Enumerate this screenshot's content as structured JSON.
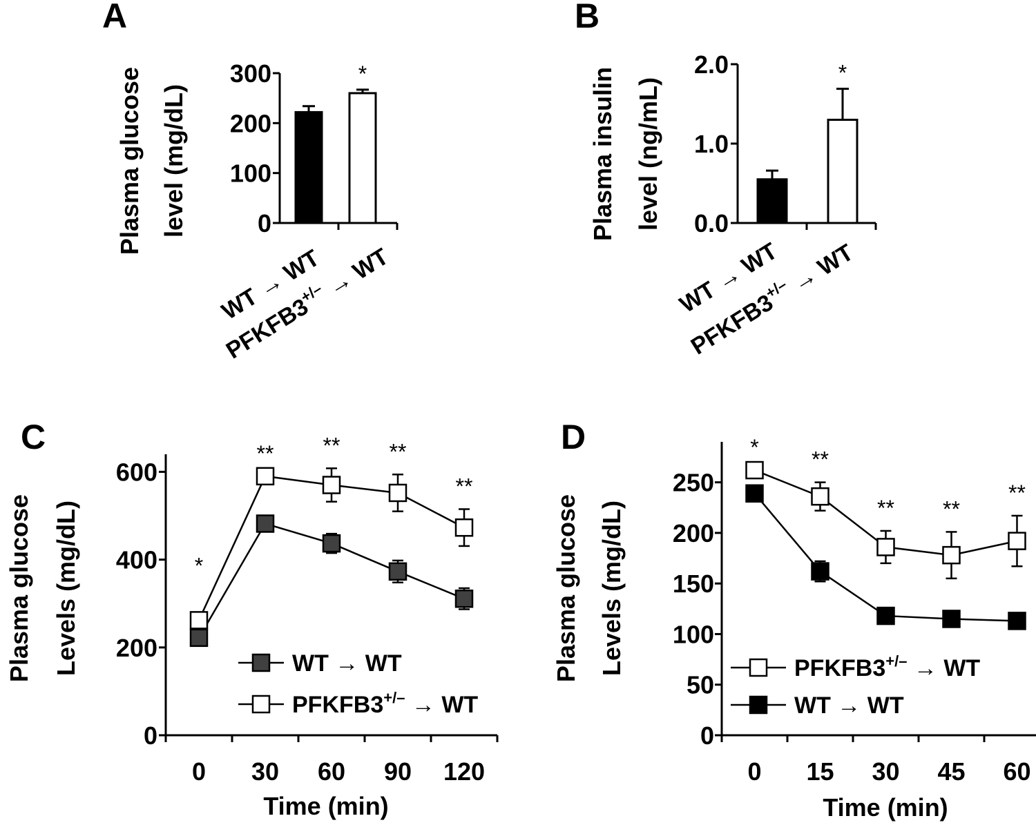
{
  "chart_data": [
    {
      "panel": "A",
      "type": "bar",
      "ylabel": "Plasma glucose level (mg/dL)",
      "ylabel_lines": [
        "Plasma glucose",
        "level (mg/dL)"
      ],
      "ylim": [
        0,
        300
      ],
      "yticks": [
        0,
        100,
        200,
        300
      ],
      "ytick_labels": [
        "0",
        "100",
        "200",
        "300"
      ],
      "categories": [
        "WT → WT",
        "PFKFB3+/– → WT"
      ],
      "category_labels": [
        {
          "main": "WT → WT",
          "base": "",
          "sup": "",
          "tail": ""
        },
        {
          "main": "",
          "base": "PFKFB3",
          "sup": "+/–",
          "tail": " → WT"
        }
      ],
      "values": [
        222,
        260
      ],
      "errors": [
        12,
        7
      ],
      "fills": [
        "#000000",
        "#ffffff"
      ],
      "significance": [
        "",
        "*"
      ]
    },
    {
      "panel": "B",
      "type": "bar",
      "ylabel": "Plasma insulin level (ng/mL)",
      "ylabel_lines": [
        "Plasma insulin",
        "level (ng/mL)"
      ],
      "ylim": [
        0,
        2.0
      ],
      "yticks": [
        0,
        1.0,
        2.0
      ],
      "ytick_labels": [
        "0.0",
        "1.0",
        "2.0"
      ],
      "categories": [
        "WT → WT",
        "PFKFB3+/– → WT"
      ],
      "category_labels": [
        {
          "main": "WT → WT",
          "base": "",
          "sup": "",
          "tail": ""
        },
        {
          "main": "",
          "base": "PFKFB3",
          "sup": "+/–",
          "tail": " → WT"
        }
      ],
      "values": [
        0.55,
        1.3
      ],
      "errors": [
        0.11,
        0.39
      ],
      "fills": [
        "#000000",
        "#ffffff"
      ],
      "significance": [
        "",
        "*"
      ]
    },
    {
      "panel": "C",
      "type": "line",
      "xlabel": "Time (min)",
      "ylabel": "Plasma glucose Levels (mg/dL)",
      "ylabel_lines": [
        "Plasma glucose",
        "Levels (mg/dL)"
      ],
      "x": [
        0,
        30,
        60,
        90,
        120
      ],
      "xtick_labels": [
        "0",
        "30",
        "60",
        "90",
        "120"
      ],
      "xlim": [
        -15,
        135
      ],
      "ylim": [
        0,
        640
      ],
      "yticks": [
        0,
        200,
        400,
        600
      ],
      "ytick_labels": [
        "0",
        "200",
        "400",
        "600"
      ],
      "series": [
        {
          "name": "WT → WT",
          "legend_base": "WT → WT",
          "legend_sup": "",
          "legend_tail": "",
          "marker_fill": "#404040",
          "values": [
            222,
            482,
            437,
            373,
            311
          ],
          "errors": [
            0,
            12,
            22,
            25,
            24
          ]
        },
        {
          "name": "PFKFB3+/– → WT",
          "legend_base": "PFKFB3",
          "legend_sup": "+/–",
          "legend_tail": " → WT",
          "marker_fill": "#ffffff",
          "values": [
            262,
            590,
            570,
            552,
            473
          ],
          "errors": [
            0,
            0,
            38,
            42,
            42
          ]
        }
      ],
      "significance": [
        "*",
        "**",
        "**",
        "**",
        "**"
      ],
      "legend_position": "lower-right"
    },
    {
      "panel": "D",
      "type": "line",
      "xlabel": "Time (min)",
      "ylabel": "Plasma glucose Levels (mg/dL)",
      "ylabel_lines": [
        "Plasma glucose",
        "Levels (mg/dL)"
      ],
      "x": [
        0,
        15,
        30,
        45,
        60
      ],
      "xtick_labels": [
        "0",
        "15",
        "30",
        "45",
        "60"
      ],
      "xlim": [
        -7.5,
        67.5
      ],
      "ylim": [
        0,
        290
      ],
      "yticks": [
        0,
        50,
        100,
        150,
        200,
        250
      ],
      "ytick_labels": [
        "0",
        "50",
        "100",
        "150",
        "200",
        "250"
      ],
      "series": [
        {
          "name": "PFKFB3+/– → WT",
          "legend_base": "PFKFB3",
          "legend_sup": "+/–",
          "legend_tail": " → WT",
          "marker_fill": "#ffffff",
          "values": [
            262,
            236,
            186,
            178,
            192
          ],
          "errors": [
            0,
            14,
            16,
            23,
            25
          ]
        },
        {
          "name": "WT → WT",
          "legend_base": "WT → WT",
          "legend_sup": "",
          "legend_tail": "",
          "marker_fill": "#000000",
          "values": [
            239,
            162,
            118,
            115,
            113
          ],
          "errors": [
            0,
            10,
            0,
            0,
            0
          ]
        }
      ],
      "significance": [
        "*",
        "**",
        "**",
        "**",
        "**"
      ],
      "legend_position": "lower-left"
    }
  ]
}
